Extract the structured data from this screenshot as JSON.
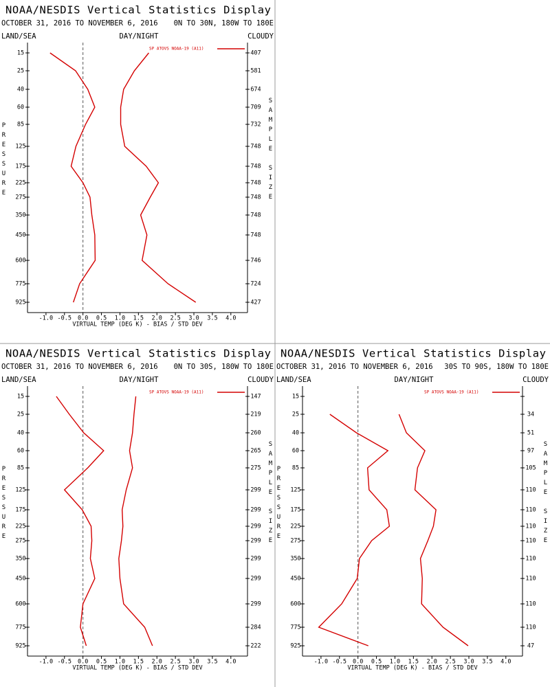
{
  "chart_data": [
    {
      "type": "line",
      "title": "NOAA/NESDIS Vertical Statistics Display",
      "subtitle": "OCTOBER 31, 2016 TO NOVEMBER 6, 2016",
      "region": "0N TO 30N, 180W TO 180E",
      "land_sea_label": "LAND/SEA",
      "day_night_label": "DAY/NIGHT",
      "cloudy_label": "CLOUDY",
      "y_label": "PRESSURE",
      "y2_label": "SAMPLE SIZE",
      "x_label": "VIRTUAL TEMP (DEG K) - BIAS / STD DEV",
      "levels": [
        15,
        25,
        40,
        60,
        85,
        125,
        175,
        225,
        275,
        350,
        450,
        600,
        775,
        925
      ],
      "sample_size": [
        407,
        581,
        674,
        709,
        732,
        748,
        748,
        748,
        748,
        748,
        748,
        746,
        724,
        427
      ],
      "series": [
        {
          "name": "SP ATOVS NOAA-19 (A11)",
          "color": "#d40000",
          "bias": [
            -0.89,
            -0.2,
            0.13,
            0.32,
            0.07,
            -0.19,
            -0.32,
            0.0,
            0.19,
            0.24,
            0.32,
            0.33,
            -0.09,
            -0.26
          ],
          "std_dev": [
            1.78,
            1.39,
            1.1,
            1.02,
            1.02,
            1.13,
            1.71,
            2.04,
            1.82,
            1.56,
            1.73,
            1.6,
            2.3,
            3.05
          ]
        }
      ],
      "reference_line": 0,
      "xlim": [
        -1.5,
        4.45
      ],
      "xticks": [
        {
          "value": -1,
          "label": "-1.0"
        },
        {
          "value": -0.5,
          "label": "-0.5"
        },
        {
          "value": 0,
          "label": "0.0"
        },
        {
          "value": 0.5,
          "label": "0.5"
        },
        {
          "value": 1,
          "label": "1.0"
        },
        {
          "value": 1.5,
          "label": "1.5"
        },
        {
          "value": 2,
          "label": "2.0"
        },
        {
          "value": 2.5,
          "label": "2.5"
        },
        {
          "value": 3,
          "label": "3.0"
        },
        {
          "value": 3.5,
          "label": "3.5"
        },
        {
          "value": 4,
          "label": "4.0"
        }
      ]
    },
    {
      "type": "line",
      "title": "NOAA/NESDIS Vertical Statistics Display",
      "subtitle": "OCTOBER 31, 2016 TO NOVEMBER 6, 2016",
      "region": "0N TO 30S, 180W TO 180E",
      "land_sea_label": "LAND/SEA",
      "day_night_label": "DAY/NIGHT",
      "cloudy_label": "CLOUDY",
      "y_label": "PRESSURE",
      "y2_label": "SAMPLE SIZE",
      "x_label": "VIRTUAL TEMP (DEG K) - BIAS / STD DEV",
      "levels": [
        15,
        25,
        40,
        60,
        85,
        125,
        175,
        225,
        275,
        350,
        450,
        600,
        775,
        925
      ],
      "sample_size": [
        147,
        219,
        260,
        265,
        275,
        299,
        299,
        299,
        299,
        299,
        299,
        299,
        284,
        222
      ],
      "series": [
        {
          "name": "SP ATOVS NOAA-19 (A11)",
          "color": "#d40000",
          "bias": [
            -0.72,
            -0.37,
            0.02,
            0.56,
            0.13,
            -0.5,
            -0.02,
            0.22,
            0.24,
            0.2,
            0.32,
            0.0,
            -0.07,
            0.09
          ],
          "std_dev": [
            1.43,
            1.38,
            1.34,
            1.26,
            1.34,
            1.17,
            1.06,
            1.08,
            1.04,
            0.97,
            1.0,
            1.1,
            1.67,
            1.88
          ]
        }
      ],
      "reference_line": 0,
      "xlim": [
        -1.5,
        4.45
      ],
      "xticks": [
        {
          "value": -1,
          "label": "-1.0"
        },
        {
          "value": -0.5,
          "label": "-0.5"
        },
        {
          "value": 0,
          "label": "0.0"
        },
        {
          "value": 0.5,
          "label": "0.5"
        },
        {
          "value": 1,
          "label": "1.0"
        },
        {
          "value": 1.5,
          "label": "1.5"
        },
        {
          "value": 2,
          "label": "2.0"
        },
        {
          "value": 2.5,
          "label": "2.5"
        },
        {
          "value": 3,
          "label": "3.0"
        },
        {
          "value": 3.5,
          "label": "3.5"
        },
        {
          "value": 4,
          "label": "4.0"
        }
      ]
    },
    {
      "type": "line",
      "title": "NOAA/NESDIS Vertical Statistics Display",
      "subtitle": "OCTOBER 31, 2016 TO NOVEMBER 6, 2016",
      "region": "30S TO 90S, 180W TO 180E",
      "land_sea_label": "LAND/SEA",
      "day_night_label": "DAY/NIGHT",
      "cloudy_label": "CLOUDY",
      "y_label": "PRESSURE",
      "y2_label": "SAMPLE SIZE",
      "x_label": "VIRTUAL TEMP (DEG K) - BIAS / STD DEV",
      "levels": [
        15,
        25,
        40,
        60,
        85,
        125,
        175,
        225,
        275,
        350,
        450,
        600,
        775,
        925
      ],
      "sample_size": [
        null,
        34,
        51,
        97,
        105,
        110,
        110,
        110,
        110,
        110,
        110,
        110,
        110,
        47
      ],
      "series": [
        {
          "name": "SP ATOVS NOAA-19 (A11)",
          "color": "#d40000",
          "bias": [
            null,
            -0.76,
            -0.04,
            0.81,
            0.26,
            0.3,
            0.78,
            0.85,
            0.37,
            0.04,
            -0.02,
            -0.44,
            -1.06,
            0.28
          ],
          "std_dev": [
            null,
            1.11,
            1.31,
            1.81,
            1.61,
            1.54,
            2.11,
            2.04,
            1.89,
            1.69,
            1.74,
            1.72,
            2.3,
            2.98
          ]
        }
      ],
      "reference_line": 0,
      "xlim": [
        -1.5,
        4.45
      ],
      "xticks": [
        {
          "value": -1,
          "label": "-1.0"
        },
        {
          "value": -0.5,
          "label": "-0.5"
        },
        {
          "value": 0,
          "label": "0.0"
        },
        {
          "value": 0.5,
          "label": "0.5"
        },
        {
          "value": 1,
          "label": "1.0"
        },
        {
          "value": 1.5,
          "label": "1.5"
        },
        {
          "value": 2,
          "label": "2.0"
        },
        {
          "value": 2.5,
          "label": "2.5"
        },
        {
          "value": 3,
          "label": "3.0"
        },
        {
          "value": 3.5,
          "label": "3.5"
        },
        {
          "value": 4,
          "label": "4.0"
        }
      ]
    }
  ]
}
